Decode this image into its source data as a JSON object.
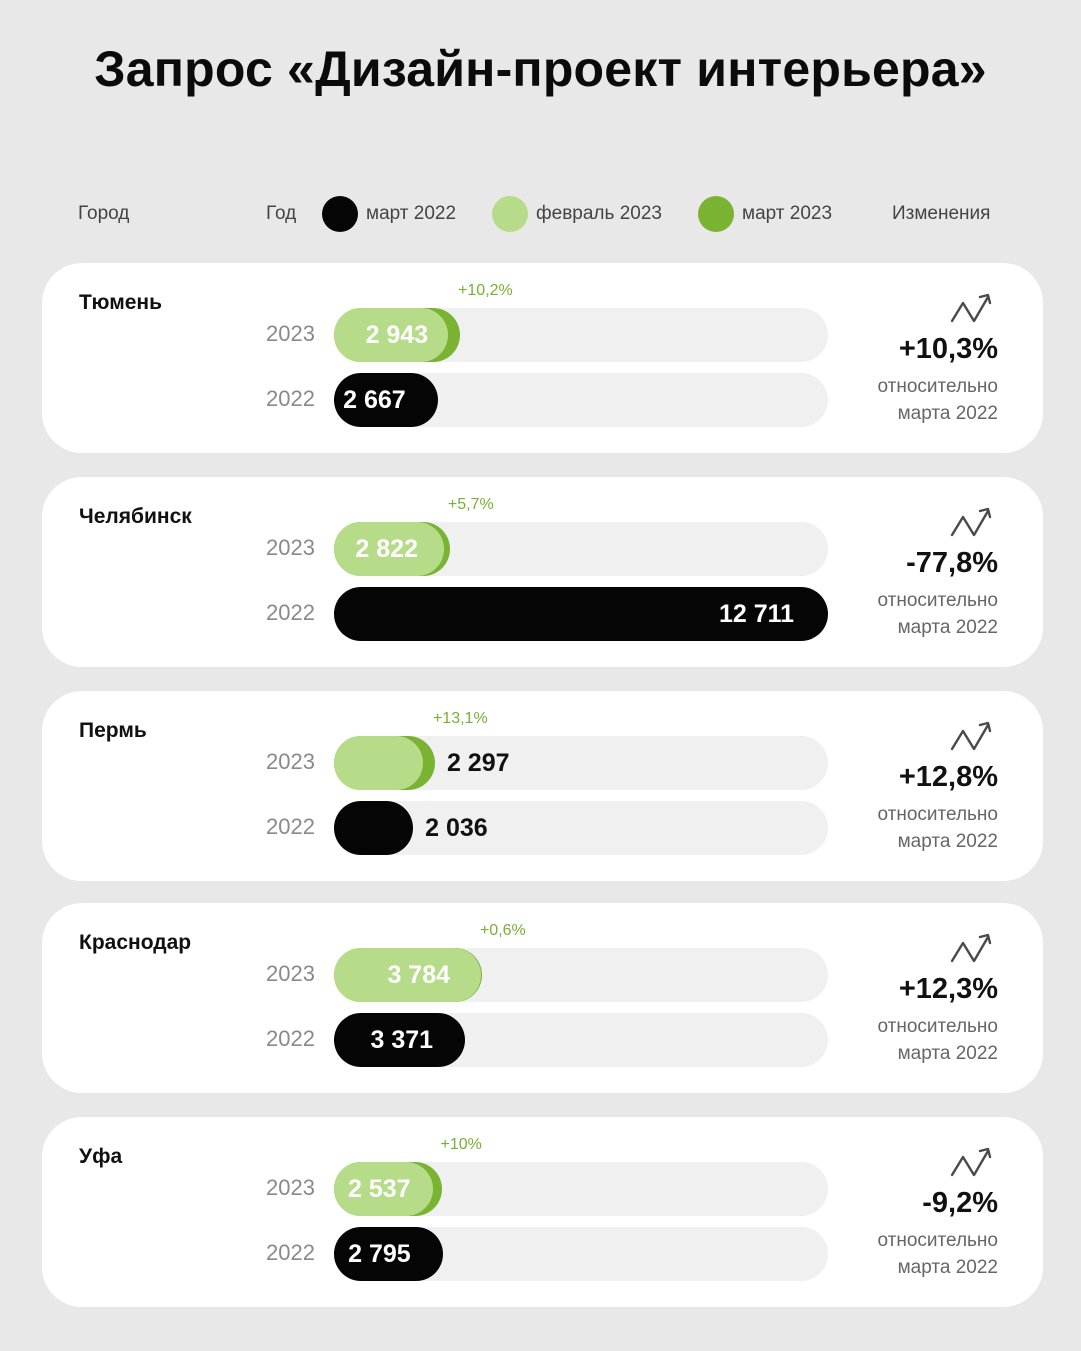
{
  "title": "Запрос «Дизайн-проект интерьера»",
  "header": {
    "city": "Город",
    "year": "Год",
    "changes": "Изменения"
  },
  "legend": [
    {
      "label": "март 2022",
      "color": "#050505"
    },
    {
      "label": "февраль 2023",
      "color": "#b6dc8a"
    },
    {
      "label": "март 2023",
      "color": "#7ab332"
    }
  ],
  "year_labels": {
    "y2023": "2023",
    "y2022": "2022"
  },
  "relative_label": {
    "line1": "относительно",
    "line2": "марта 2022"
  },
  "chart_data": {
    "type": "bar",
    "categories": [
      "Тюмень",
      "Челябинск",
      "Пермь",
      "Краснодар",
      "Уфа"
    ],
    "series": [
      {
        "name": "март 2022",
        "values": [
          2667,
          12711,
          2036,
          3371,
          2795
        ]
      },
      {
        "name": "февраль 2023",
        "values": [
          2943,
          2822,
          2297,
          3784,
          2537
        ]
      },
      {
        "name": "март 2023",
        "values": [
          3244,
          2983,
          2598,
          3807,
          2791
        ]
      }
    ],
    "rows": [
      {
        "city": "Тюмень",
        "v2023": "2 943",
        "v2022": "2 667",
        "growth": "+10,2%",
        "change": "+10,3%"
      },
      {
        "city": "Челябинск",
        "v2023": "2 822",
        "v2022": "12 711",
        "growth": "+5,7%",
        "change": "-77,8%"
      },
      {
        "city": "Пермь",
        "v2023": "2 297",
        "v2022": "2 036",
        "growth": "+13,1%",
        "change": "+12,8%"
      },
      {
        "city": "Краснодар",
        "v2023": "3 784",
        "v2022": "3 371",
        "growth": "+0,6%",
        "change": "+12,3%"
      },
      {
        "city": "Уфа",
        "v2023": "2 537",
        "v2022": "2 795",
        "growth": "+10%",
        "change": "-9,2%"
      }
    ],
    "xlim": [
      0,
      12711
    ]
  }
}
